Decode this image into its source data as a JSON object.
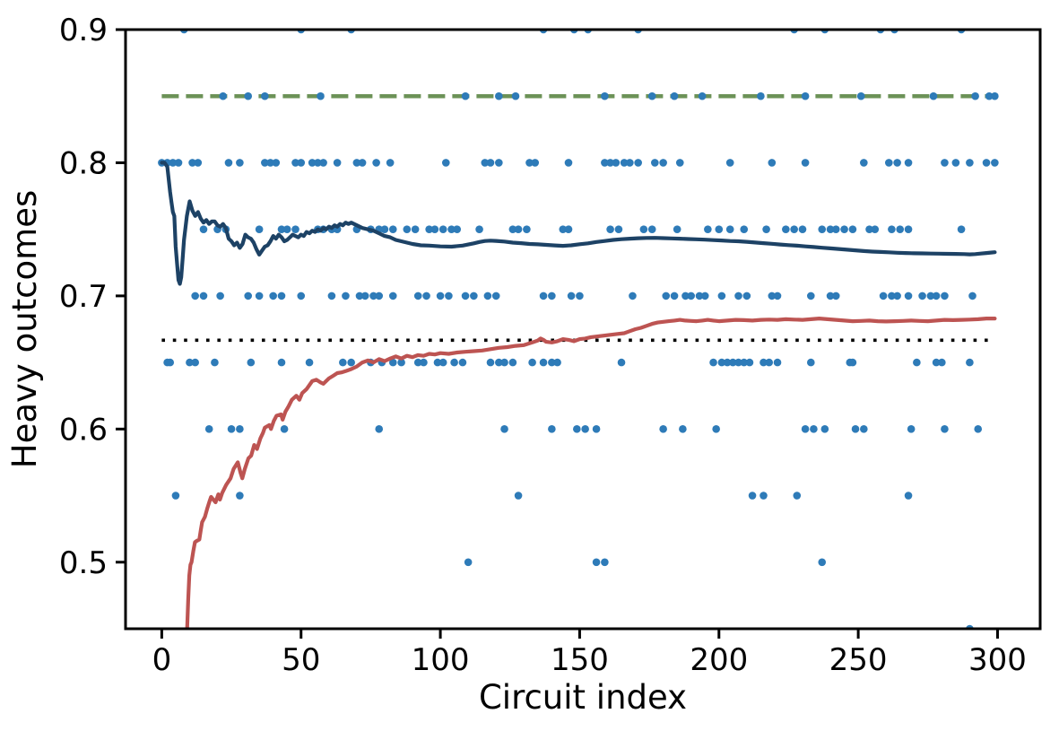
{
  "chart_data": {
    "type": "scatter+line",
    "xlabel": "Circuit index",
    "ylabel": "Heavy outcomes",
    "xlim": [
      -13,
      315.3
    ],
    "ylim": [
      0.45,
      0.9
    ],
    "xticks": [
      0,
      50,
      100,
      150,
      200,
      250,
      300
    ],
    "xtick_labels": [
      "0",
      "50",
      "100",
      "150",
      "200",
      "250",
      "300"
    ],
    "yticks": [
      0.5,
      0.6,
      0.7,
      0.8,
      0.9
    ],
    "ytick_labels": [
      "0.5",
      "0.6",
      "0.7",
      "0.8",
      "0.9"
    ],
    "grid": false,
    "legend": "none",
    "colors": {
      "scatter": "#2e7bb8",
      "mean_line": "#1d4265",
      "lower_bound_line": "#bd5452",
      "ideal_line": "#6c9257",
      "threshold_line": "#000000",
      "axis": "#000000",
      "background": "#ffffff"
    },
    "ideal_line": {
      "y": 0.85,
      "x_start": 0,
      "x_end": 299,
      "style": "dashed"
    },
    "threshold_line": {
      "y": 0.6667,
      "x_start": 0,
      "x_end": 299,
      "style": "dotted"
    },
    "scatter_rows": [
      {
        "y": 0.9,
        "x": [
          8,
          50,
          68,
          137,
          148,
          153,
          171,
          227,
          238,
          258,
          263,
          287
        ]
      },
      {
        "y": 0.85,
        "x": [
          22,
          31,
          37,
          57,
          109,
          121,
          127,
          159,
          176,
          184,
          194,
          215,
          231,
          251,
          277,
          292,
          297,
          299
        ]
      },
      {
        "y": 0.8,
        "x": [
          0,
          2,
          4,
          6,
          11,
          13,
          24,
          28,
          37,
          39,
          41,
          48,
          50,
          54,
          56,
          58,
          63,
          70,
          72,
          77,
          82,
          102,
          116,
          118,
          121,
          132,
          134,
          146,
          159,
          161,
          163,
          166,
          168,
          171,
          177,
          180,
          186,
          204,
          219,
          231,
          252,
          261,
          264,
          268,
          281,
          285,
          290,
          296,
          299
        ]
      },
      {
        "y": 0.75,
        "x": [
          15,
          20,
          23,
          35,
          43,
          45,
          48,
          56,
          58,
          61,
          63,
          70,
          75,
          78,
          80,
          83,
          88,
          91,
          96,
          98,
          101,
          104,
          106,
          114,
          126,
          128,
          131,
          144,
          146,
          161,
          164,
          173,
          176,
          185,
          196,
          200,
          204,
          209,
          217,
          224,
          227,
          230,
          237,
          240,
          242,
          245,
          248,
          254,
          256,
          262,
          265,
          268,
          287
        ]
      },
      {
        "y": 0.7,
        "x": [
          12,
          15,
          21,
          31,
          35,
          40,
          43,
          50,
          61,
          66,
          71,
          73,
          76,
          78,
          83,
          92,
          95,
          100,
          103,
          109,
          112,
          117,
          120,
          137,
          140,
          147,
          150,
          169,
          181,
          184,
          188,
          190,
          193,
          195,
          201,
          207,
          210,
          219,
          221,
          233,
          240,
          242,
          259,
          262,
          264,
          268,
          273,
          276,
          278,
          281,
          291
        ]
      },
      {
        "y": 0.65,
        "x": [
          2,
          3,
          10,
          12,
          19,
          32,
          43,
          53,
          65,
          68,
          75,
          79,
          83,
          86,
          92,
          94,
          99,
          101,
          105,
          108,
          118,
          121,
          123,
          126,
          133,
          137,
          140,
          142,
          165,
          198,
          201,
          203,
          205,
          207,
          209,
          211,
          216,
          218,
          221,
          233,
          247,
          248,
          271,
          278,
          280,
          290
        ]
      },
      {
        "y": 0.6,
        "x": [
          17,
          25,
          28,
          44,
          78,
          123,
          140,
          149,
          152,
          156,
          180,
          187,
          199,
          231,
          234,
          238,
          249,
          252,
          269,
          281,
          293
        ]
      },
      {
        "y": 0.55,
        "x": [
          5,
          28,
          128,
          212,
          216,
          228,
          268
        ]
      },
      {
        "y": 0.5,
        "x": [
          110,
          156,
          159,
          237
        ]
      },
      {
        "y": 0.45,
        "x": [
          290
        ]
      }
    ],
    "mean_line": [
      [
        0,
        0.8
      ],
      [
        1,
        0.8
      ],
      [
        2,
        0.797
      ],
      [
        3,
        0.778
      ],
      [
        3.5,
        0.77
      ],
      [
        4,
        0.763
      ],
      [
        4.5,
        0.76
      ],
      [
        5,
        0.737
      ],
      [
        5.5,
        0.724
      ],
      [
        6,
        0.712
      ],
      [
        6.5,
        0.709
      ],
      [
        7,
        0.714
      ],
      [
        7.5,
        0.728
      ],
      [
        8,
        0.742
      ],
      [
        9,
        0.76
      ],
      [
        10,
        0.771
      ],
      [
        11,
        0.764
      ],
      [
        12,
        0.76
      ],
      [
        13,
        0.763
      ],
      [
        14,
        0.758
      ],
      [
        15,
        0.755
      ],
      [
        16,
        0.757
      ],
      [
        17,
        0.754
      ],
      [
        18,
        0.756
      ],
      [
        19,
        0.756
      ],
      [
        20,
        0.753
      ],
      [
        21,
        0.752
      ],
      [
        22,
        0.754
      ],
      [
        23,
        0.751
      ],
      [
        24,
        0.743
      ],
      [
        25,
        0.741
      ],
      [
        26,
        0.738
      ],
      [
        27,
        0.74
      ],
      [
        28,
        0.736
      ],
      [
        29,
        0.739
      ],
      [
        30,
        0.746
      ],
      [
        31,
        0.744
      ],
      [
        32,
        0.743
      ],
      [
        33,
        0.74
      ],
      [
        34,
        0.735
      ],
      [
        35,
        0.731
      ],
      [
        36,
        0.734
      ],
      [
        37,
        0.737
      ],
      [
        38,
        0.738
      ],
      [
        39,
        0.741
      ],
      [
        40,
        0.745
      ],
      [
        41,
        0.743
      ],
      [
        42,
        0.746
      ],
      [
        43,
        0.744
      ],
      [
        44,
        0.741
      ],
      [
        45,
        0.742
      ],
      [
        46,
        0.744
      ],
      [
        47,
        0.746
      ],
      [
        48,
        0.745
      ],
      [
        49,
        0.744
      ],
      [
        50,
        0.746
      ],
      [
        51,
        0.745
      ],
      [
        52,
        0.748
      ],
      [
        53,
        0.747
      ],
      [
        54,
        0.749
      ],
      [
        55,
        0.748
      ],
      [
        56,
        0.75
      ],
      [
        57,
        0.749
      ],
      [
        58,
        0.751
      ],
      [
        59,
        0.75
      ],
      [
        60,
        0.752
      ],
      [
        61,
        0.751
      ],
      [
        62,
        0.753
      ],
      [
        63,
        0.752
      ],
      [
        64,
        0.754
      ],
      [
        65,
        0.753
      ],
      [
        66,
        0.755
      ],
      [
        67,
        0.754
      ],
      [
        68,
        0.755
      ],
      [
        69,
        0.754
      ],
      [
        70,
        0.753
      ],
      [
        71,
        0.752
      ],
      [
        72,
        0.751
      ],
      [
        74,
        0.75
      ],
      [
        76,
        0.749
      ],
      [
        78,
        0.747
      ],
      [
        80,
        0.745
      ],
      [
        82,
        0.744
      ],
      [
        84,
        0.742
      ],
      [
        86,
        0.741
      ],
      [
        88,
        0.74
      ],
      [
        90,
        0.739
      ],
      [
        93,
        0.738
      ],
      [
        96,
        0.7378
      ],
      [
        100,
        0.7372
      ],
      [
        104,
        0.737
      ],
      [
        108,
        0.7378
      ],
      [
        112,
        0.7395
      ],
      [
        114,
        0.7405
      ],
      [
        116,
        0.7412
      ],
      [
        118,
        0.7415
      ],
      [
        120,
        0.7413
      ],
      [
        123,
        0.7408
      ],
      [
        126,
        0.74
      ],
      [
        129,
        0.7396
      ],
      [
        132,
        0.739
      ],
      [
        135,
        0.7387
      ],
      [
        138,
        0.7383
      ],
      [
        141,
        0.7379
      ],
      [
        144,
        0.7376
      ],
      [
        147,
        0.738
      ],
      [
        150,
        0.7388
      ],
      [
        153,
        0.7395
      ],
      [
        156,
        0.7405
      ],
      [
        159,
        0.7412
      ],
      [
        162,
        0.742
      ],
      [
        165,
        0.7426
      ],
      [
        168,
        0.743
      ],
      [
        171,
        0.7433
      ],
      [
        174,
        0.7435
      ],
      [
        177,
        0.7436
      ],
      [
        180,
        0.7434
      ],
      [
        183,
        0.7432
      ],
      [
        186,
        0.743
      ],
      [
        189,
        0.7427
      ],
      [
        192,
        0.7425
      ],
      [
        195,
        0.7422
      ],
      [
        198,
        0.7419
      ],
      [
        201,
        0.7416
      ],
      [
        204,
        0.7412
      ],
      [
        207,
        0.741
      ],
      [
        210,
        0.7406
      ],
      [
        213,
        0.7401
      ],
      [
        216,
        0.7396
      ],
      [
        219,
        0.7391
      ],
      [
        222,
        0.7386
      ],
      [
        225,
        0.7381
      ],
      [
        228,
        0.7377
      ],
      [
        231,
        0.7372
      ],
      [
        234,
        0.7367
      ],
      [
        237,
        0.7362
      ],
      [
        240,
        0.7357
      ],
      [
        243,
        0.7352
      ],
      [
        246,
        0.7347
      ],
      [
        249,
        0.7342
      ],
      [
        252,
        0.7337
      ],
      [
        255,
        0.7333
      ],
      [
        258,
        0.733
      ],
      [
        261,
        0.7327
      ],
      [
        264,
        0.7324
      ],
      [
        267,
        0.7322
      ],
      [
        270,
        0.732
      ],
      [
        273,
        0.7319
      ],
      [
        276,
        0.7318
      ],
      [
        279,
        0.7317
      ],
      [
        282,
        0.7316
      ],
      [
        285,
        0.7315
      ],
      [
        288,
        0.7314
      ],
      [
        290,
        0.7312
      ],
      [
        292,
        0.7314
      ],
      [
        294,
        0.7318
      ],
      [
        296,
        0.7322
      ],
      [
        298,
        0.7326
      ],
      [
        299,
        0.7328
      ]
    ],
    "lower_bound_line": [
      [
        8.6,
        0.405
      ],
      [
        8.8,
        0.43
      ],
      [
        9.1,
        0.45
      ],
      [
        9.5,
        0.472
      ],
      [
        9.9,
        0.49
      ],
      [
        10.3,
        0.498
      ],
      [
        10.7,
        0.5
      ],
      [
        11.3,
        0.508
      ],
      [
        11.9,
        0.515
      ],
      [
        12.6,
        0.516
      ],
      [
        13.5,
        0.517
      ],
      [
        14,
        0.524
      ],
      [
        14.5,
        0.53
      ],
      [
        15.5,
        0.534
      ],
      [
        16.3,
        0.54
      ],
      [
        17.2,
        0.546
      ],
      [
        17.7,
        0.549
      ],
      [
        18.5,
        0.547
      ],
      [
        19.3,
        0.545
      ],
      [
        20.3,
        0.551
      ],
      [
        20.9,
        0.547
      ],
      [
        21.7,
        0.552
      ],
      [
        23.1,
        0.558
      ],
      [
        24.7,
        0.563
      ],
      [
        25.8,
        0.57
      ],
      [
        27.3,
        0.575
      ],
      [
        28.3,
        0.567
      ],
      [
        28.9,
        0.563
      ],
      [
        29.8,
        0.57
      ],
      [
        31.1,
        0.578
      ],
      [
        32.1,
        0.58
      ],
      [
        33.2,
        0.588
      ],
      [
        34.2,
        0.585
      ],
      [
        35.4,
        0.593
      ],
      [
        36.3,
        0.597
      ],
      [
        37,
        0.601
      ],
      [
        38.6,
        0.603
      ],
      [
        39.2,
        0.6
      ],
      [
        40.2,
        0.606
      ],
      [
        41.2,
        0.61
      ],
      [
        42.8,
        0.611
      ],
      [
        43.4,
        0.607
      ],
      [
        44.4,
        0.613
      ],
      [
        45.5,
        0.617
      ],
      [
        46.7,
        0.622
      ],
      [
        48.3,
        0.625
      ],
      [
        49.4,
        0.622
      ],
      [
        50.4,
        0.627
      ],
      [
        52,
        0.63
      ],
      [
        54,
        0.636
      ],
      [
        55.5,
        0.637
      ],
      [
        57,
        0.635
      ],
      [
        58,
        0.634
      ],
      [
        60,
        0.638
      ],
      [
        61.5,
        0.64
      ],
      [
        63,
        0.642
      ],
      [
        64.5,
        0.6425
      ],
      [
        66,
        0.6435
      ],
      [
        68,
        0.645
      ],
      [
        70,
        0.647
      ],
      [
        72,
        0.65
      ],
      [
        74,
        0.6515
      ],
      [
        76,
        0.65
      ],
      [
        78,
        0.6525
      ],
      [
        80,
        0.651
      ],
      [
        82,
        0.653
      ],
      [
        84,
        0.6545
      ],
      [
        86,
        0.653
      ],
      [
        88,
        0.655
      ],
      [
        90,
        0.654
      ],
      [
        92,
        0.6555
      ],
      [
        94,
        0.655
      ],
      [
        96,
        0.6565
      ],
      [
        98,
        0.656
      ],
      [
        100,
        0.657
      ],
      [
        103,
        0.6565
      ],
      [
        106,
        0.6575
      ],
      [
        109,
        0.658
      ],
      [
        112,
        0.6585
      ],
      [
        115,
        0.659
      ],
      [
        118,
        0.66
      ],
      [
        121,
        0.661
      ],
      [
        124,
        0.6615
      ],
      [
        127,
        0.6625
      ],
      [
        130,
        0.663
      ],
      [
        133,
        0.665
      ],
      [
        135,
        0.6665
      ],
      [
        136,
        0.668
      ],
      [
        137,
        0.667
      ],
      [
        138,
        0.6655
      ],
      [
        140,
        0.665
      ],
      [
        142,
        0.666
      ],
      [
        144,
        0.6675
      ],
      [
        146,
        0.667
      ],
      [
        148,
        0.666
      ],
      [
        150,
        0.6675
      ],
      [
        152,
        0.668
      ],
      [
        154,
        0.669
      ],
      [
        156,
        0.6695
      ],
      [
        158,
        0.67
      ],
      [
        160,
        0.6705
      ],
      [
        162,
        0.671
      ],
      [
        164,
        0.6715
      ],
      [
        166,
        0.672
      ],
      [
        168,
        0.6735
      ],
      [
        170,
        0.675
      ],
      [
        172,
        0.676
      ],
      [
        174,
        0.6775
      ],
      [
        176,
        0.679
      ],
      [
        178,
        0.68
      ],
      [
        180,
        0.6805
      ],
      [
        182,
        0.681
      ],
      [
        184,
        0.6815
      ],
      [
        186,
        0.682
      ],
      [
        188,
        0.6815
      ],
      [
        190,
        0.6812
      ],
      [
        192,
        0.681
      ],
      [
        194,
        0.6815
      ],
      [
        196,
        0.682
      ],
      [
        198,
        0.6815
      ],
      [
        200,
        0.681
      ],
      [
        203,
        0.6815
      ],
      [
        206,
        0.682
      ],
      [
        209,
        0.6818
      ],
      [
        212,
        0.6815
      ],
      [
        215,
        0.682
      ],
      [
        218,
        0.6822
      ],
      [
        221,
        0.682
      ],
      [
        224,
        0.6825
      ],
      [
        227,
        0.6822
      ],
      [
        230,
        0.682
      ],
      [
        233,
        0.6825
      ],
      [
        236,
        0.683
      ],
      [
        239,
        0.6825
      ],
      [
        242,
        0.682
      ],
      [
        245,
        0.6815
      ],
      [
        248,
        0.681
      ],
      [
        251,
        0.6812
      ],
      [
        254,
        0.6815
      ],
      [
        257,
        0.681
      ],
      [
        260,
        0.6808
      ],
      [
        263,
        0.681
      ],
      [
        266,
        0.6812
      ],
      [
        269,
        0.6815
      ],
      [
        272,
        0.6812
      ],
      [
        275,
        0.681
      ],
      [
        278,
        0.6815
      ],
      [
        281,
        0.682
      ],
      [
        284,
        0.6818
      ],
      [
        287,
        0.682
      ],
      [
        290,
        0.6822
      ],
      [
        293,
        0.6825
      ],
      [
        296,
        0.683
      ],
      [
        299,
        0.683
      ]
    ]
  }
}
